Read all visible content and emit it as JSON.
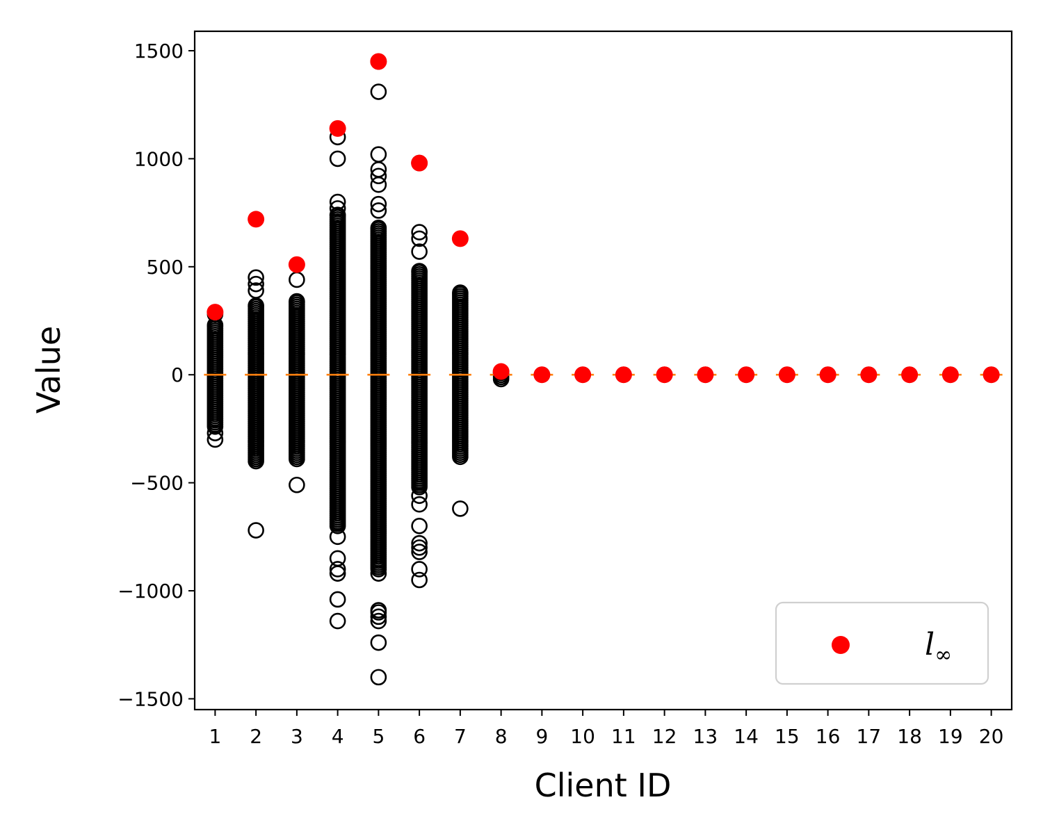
{
  "chart_data": {
    "type": "scatter",
    "xlabel": "Client ID",
    "ylabel": "Value",
    "x_ticks": [
      "1",
      "2",
      "3",
      "4",
      "5",
      "6",
      "7",
      "8",
      "9",
      "10",
      "11",
      "12",
      "13",
      "14",
      "15",
      "16",
      "17",
      "18",
      "19",
      "20"
    ],
    "y_ticks": [
      1500,
      1000,
      500,
      0,
      -500,
      -1000,
      -1500
    ],
    "y_tick_labels": [
      "1500",
      "1000",
      "500",
      "0",
      "−500",
      "−1000",
      "−1500"
    ],
    "ylim": [
      -1550,
      1590
    ],
    "xlim": [
      0.5,
      20.5
    ],
    "grid": false,
    "legend": {
      "placement": "bottom-right",
      "label_main": "l",
      "label_sub": "∞"
    },
    "colors": {
      "linf": "#ff0000",
      "median": "#ff7f0e",
      "points_edge": "#000000"
    },
    "series": [
      {
        "name": "l∞",
        "style": "filled-red",
        "points": [
          {
            "x": 1,
            "y": 290
          },
          {
            "x": 2,
            "y": 720
          },
          {
            "x": 3,
            "y": 510
          },
          {
            "x": 4,
            "y": 1140
          },
          {
            "x": 5,
            "y": 1450
          },
          {
            "x": 6,
            "y": 980
          },
          {
            "x": 7,
            "y": 630
          },
          {
            "x": 8,
            "y": 15
          },
          {
            "x": 9,
            "y": 0
          },
          {
            "x": 10,
            "y": 0
          },
          {
            "x": 11,
            "y": 0
          },
          {
            "x": 12,
            "y": 0
          },
          {
            "x": 13,
            "y": 0
          },
          {
            "x": 14,
            "y": 0
          },
          {
            "x": 15,
            "y": 0
          },
          {
            "x": 16,
            "y": 0
          },
          {
            "x": 17,
            "y": 0
          },
          {
            "x": 18,
            "y": 0
          },
          {
            "x": 19,
            "y": 0
          },
          {
            "x": 20,
            "y": 0
          }
        ]
      },
      {
        "style": "hollow-black",
        "clients": [
          {
            "x": 1,
            "dense": [
              -240,
              230
            ],
            "outliers": [
              280,
              -270,
              -300
            ]
          },
          {
            "x": 2,
            "dense": [
              -400,
              320
            ],
            "outliers": [
              450,
              420,
              390,
              -720
            ]
          },
          {
            "x": 3,
            "dense": [
              -390,
              340
            ],
            "outliers": [
              440,
              -510
            ]
          },
          {
            "x": 4,
            "dense": [
              -700,
              740
            ],
            "outliers": [
              1100,
              1000,
              800,
              770,
              -750,
              -850,
              -900,
              -920,
              -1040,
              -1140
            ]
          },
          {
            "x": 5,
            "dense": [
              -900,
              680
            ],
            "outliers": [
              1450,
              1310,
              1020,
              950,
              920,
              880,
              790,
              760,
              -1090,
              -1100,
              -1120,
              -1140,
              -1240,
              -1400,
              -920
            ]
          },
          {
            "x": 6,
            "dense": [
              -520,
              480
            ],
            "outliers": [
              980,
              660,
              630,
              570,
              -560,
              -600,
              -700,
              -780,
              -800,
              -820,
              -900,
              -950
            ]
          },
          {
            "x": 7,
            "dense": [
              -380,
              380
            ],
            "outliers": [
              -620
            ]
          },
          {
            "x": 8,
            "dense": [
              -20,
              10
            ],
            "outliers": []
          },
          {
            "x": 9,
            "dense": [
              0,
              0
            ],
            "outliers": []
          },
          {
            "x": 10,
            "dense": [
              0,
              0
            ],
            "outliers": []
          },
          {
            "x": 11,
            "dense": [
              0,
              0
            ],
            "outliers": []
          },
          {
            "x": 12,
            "dense": [
              0,
              0
            ],
            "outliers": []
          },
          {
            "x": 13,
            "dense": [
              0,
              0
            ],
            "outliers": []
          },
          {
            "x": 14,
            "dense": [
              0,
              0
            ],
            "outliers": []
          },
          {
            "x": 15,
            "dense": [
              0,
              0
            ],
            "outliers": []
          },
          {
            "x": 16,
            "dense": [
              0,
              0
            ],
            "outliers": []
          },
          {
            "x": 17,
            "dense": [
              0,
              0
            ],
            "outliers": []
          },
          {
            "x": 18,
            "dense": [
              0,
              0
            ],
            "outliers": []
          },
          {
            "x": 19,
            "dense": [
              0,
              0
            ],
            "outliers": []
          },
          {
            "x": 20,
            "dense": [
              0,
              0
            ],
            "outliers": []
          }
        ]
      }
    ]
  }
}
